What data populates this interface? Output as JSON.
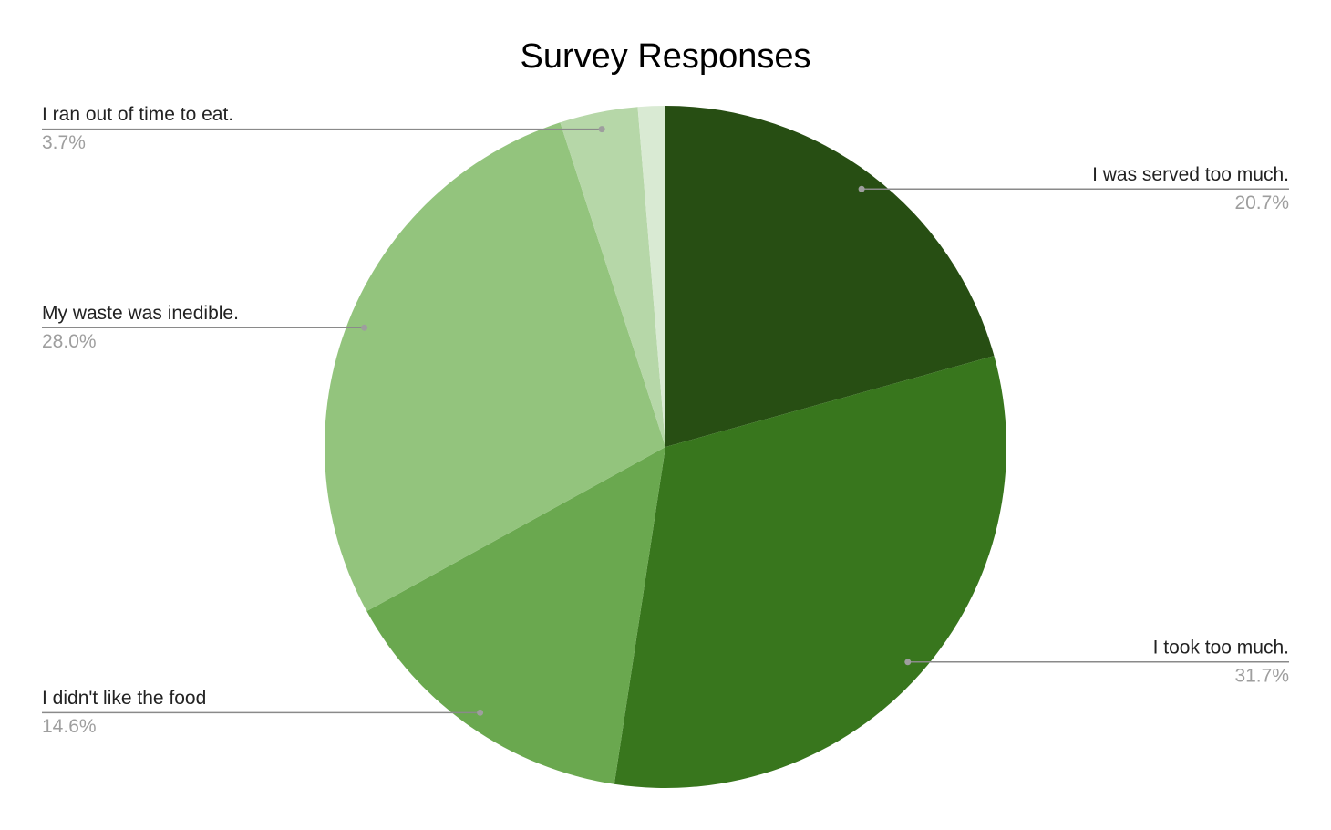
{
  "chart_data": {
    "type": "pie",
    "title": "Survey Responses",
    "categories": [
      "I was served too much.",
      "I took too much.",
      "I didn't like the food",
      "My waste was inedible.",
      "I ran out of time to eat.",
      null
    ],
    "values": [
      20.7,
      31.7,
      14.6,
      28.0,
      3.7,
      1.3
    ],
    "value_labels": [
      "20.7%",
      "31.7%",
      "14.6%",
      "28.0%",
      "3.7%",
      null
    ],
    "colors": [
      "#274e13",
      "#38761d",
      "#6aa84f",
      "#93c47d",
      "#b6d7a8",
      "#d9ead3"
    ]
  }
}
